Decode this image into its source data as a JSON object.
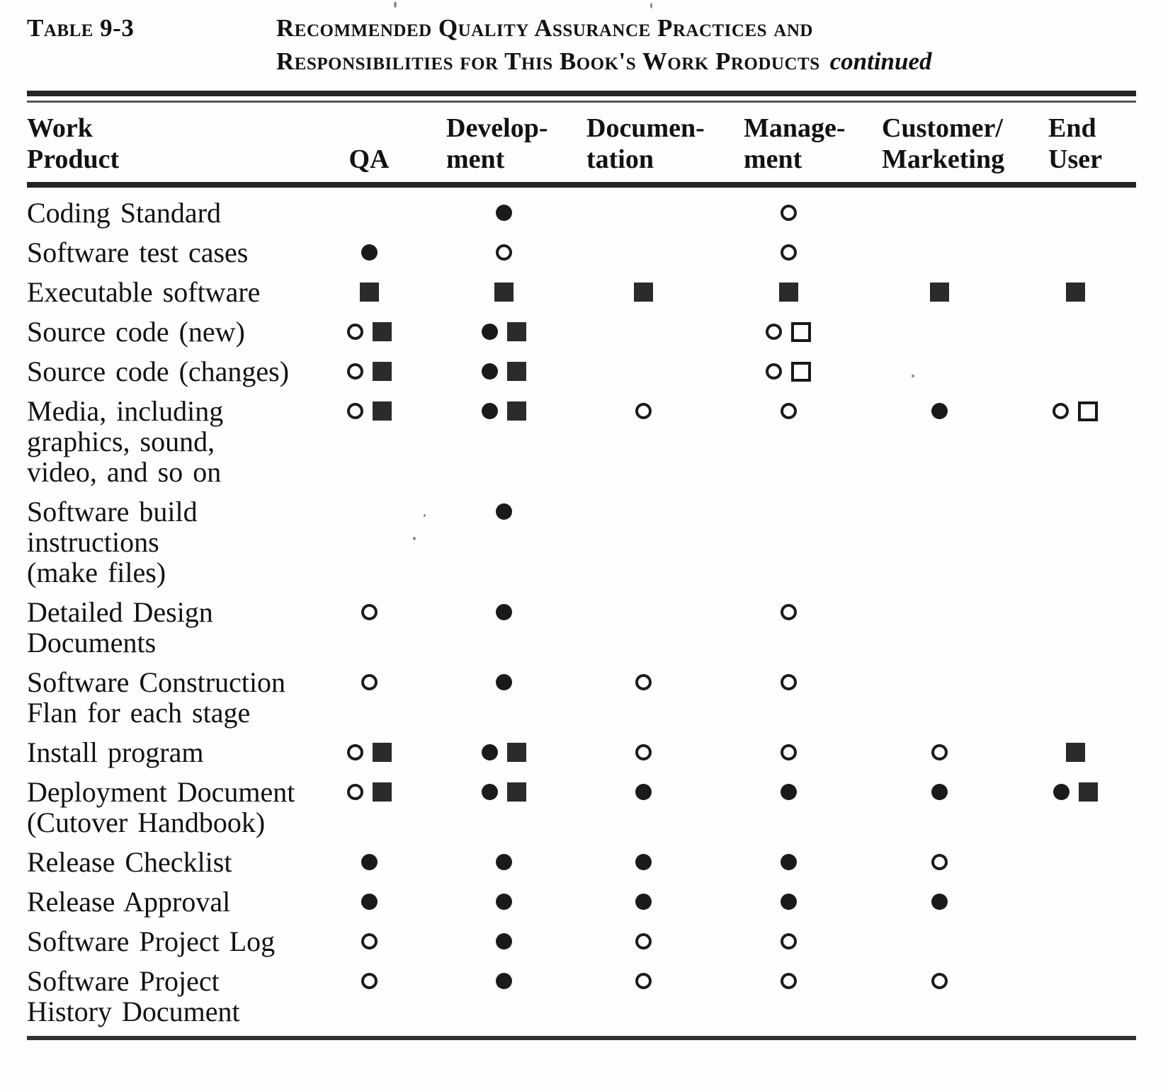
{
  "table": {
    "tag": "Table 9-3",
    "title_line1": "Recommended Quality Assurance Practices and",
    "title_line2": "Responsibilities for This Book's Work Products",
    "title_continued": "continued",
    "columns": [
      {
        "id": "work-product",
        "label": "Work\nProduct"
      },
      {
        "id": "qa",
        "label": "QA"
      },
      {
        "id": "development",
        "label": "Develop-\nment"
      },
      {
        "id": "documentation",
        "label": "Documen-\ntation"
      },
      {
        "id": "management",
        "label": "Manage-\nment"
      },
      {
        "id": "customer-marketing",
        "label": "Customer/\nMarketing"
      },
      {
        "id": "end-user",
        "label": "End\nUser"
      }
    ],
    "symbol_names": {
      "open-circle": "open-circle-symbol",
      "filled-circle": "filled-circle-symbol",
      "filled-square": "filled-square-symbol",
      "open-square": "open-square-symbol"
    },
    "rows": [
      {
        "label": "Coding Standard",
        "cells": [
          [],
          [
            "filled-circle"
          ],
          [],
          [
            "open-circle"
          ],
          [],
          []
        ]
      },
      {
        "label": "Software test cases",
        "cells": [
          [
            "filled-circle"
          ],
          [
            "open-circle"
          ],
          [],
          [
            "open-circle"
          ],
          [],
          []
        ]
      },
      {
        "label": "Executable software",
        "cells": [
          [
            "filled-square"
          ],
          [
            "filled-square"
          ],
          [
            "filled-square"
          ],
          [
            "filled-square"
          ],
          [
            "filled-square"
          ],
          [
            "filled-square"
          ]
        ]
      },
      {
        "label": "Source code (new)",
        "cells": [
          [
            "open-circle",
            "filled-square"
          ],
          [
            "filled-circle",
            "filled-square"
          ],
          [],
          [
            "open-circle",
            "open-square"
          ],
          [],
          []
        ]
      },
      {
        "label": "Source code (changes)",
        "cells": [
          [
            "open-circle",
            "filled-square"
          ],
          [
            "filled-circle",
            "filled-square"
          ],
          [],
          [
            "open-circle",
            "open-square"
          ],
          [],
          []
        ]
      },
      {
        "label": "Media, including\ngraphics, sound,\nvideo, and so on",
        "cells": [
          [
            "open-circle",
            "filled-square"
          ],
          [
            "filled-circle",
            "filled-square"
          ],
          [
            "open-circle"
          ],
          [
            "open-circle"
          ],
          [
            "filled-circle"
          ],
          [
            "open-circle",
            "open-square"
          ]
        ]
      },
      {
        "label": "Software build\ninstructions\n(make files)",
        "cells": [
          [],
          [
            "filled-circle"
          ],
          [],
          [],
          [],
          []
        ]
      },
      {
        "label": "Detailed Design\nDocuments",
        "cells": [
          [
            "open-circle"
          ],
          [
            "filled-circle"
          ],
          [],
          [
            "open-circle"
          ],
          [],
          []
        ]
      },
      {
        "label": "Software Construction\nFlan for each stage",
        "cells": [
          [
            "open-circle"
          ],
          [
            "filled-circle"
          ],
          [
            "open-circle"
          ],
          [
            "open-circle"
          ],
          [],
          []
        ]
      },
      {
        "label": "Install program",
        "cells": [
          [
            "open-circle",
            "filled-square"
          ],
          [
            "filled-circle",
            "filled-square"
          ],
          [
            "open-circle"
          ],
          [
            "open-circle"
          ],
          [
            "open-circle"
          ],
          [
            "filled-square"
          ]
        ]
      },
      {
        "label": "Deployment Document\n(Cutover Handbook)",
        "cells": [
          [
            "open-circle",
            "filled-square"
          ],
          [
            "filled-circle",
            "filled-square"
          ],
          [
            "filled-circle"
          ],
          [
            "filled-circle"
          ],
          [
            "filled-circle"
          ],
          [
            "filled-circle",
            "filled-square"
          ]
        ]
      },
      {
        "label": "Release Checklist",
        "cells": [
          [
            "filled-circle"
          ],
          [
            "filled-circle"
          ],
          [
            "filled-circle"
          ],
          [
            "filled-circle"
          ],
          [
            "open-circle"
          ],
          []
        ]
      },
      {
        "label": "Release Approval",
        "cells": [
          [
            "filled-circle"
          ],
          [
            "filled-circle"
          ],
          [
            "filled-circle"
          ],
          [
            "filled-circle"
          ],
          [
            "filled-circle"
          ],
          []
        ]
      },
      {
        "label": "Software Project Log",
        "cells": [
          [
            "open-circle"
          ],
          [
            "filled-circle"
          ],
          [
            "open-circle"
          ],
          [
            "open-circle"
          ],
          [],
          []
        ]
      },
      {
        "label": "Software Project\nHistory Document",
        "cells": [
          [
            "open-circle"
          ],
          [
            "filled-circle"
          ],
          [
            "open-circle"
          ],
          [
            "open-circle"
          ],
          [
            "open-circle"
          ],
          []
        ]
      }
    ]
  }
}
